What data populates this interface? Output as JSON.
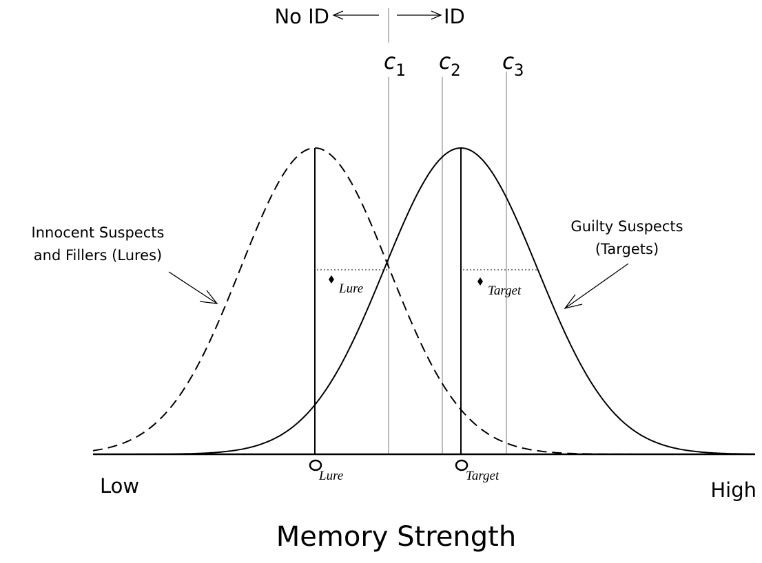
{
  "header": {
    "no_id": "No ID",
    "id": "ID"
  },
  "criteria": [
    {
      "letter": "c",
      "sub": "1"
    },
    {
      "letter": "c",
      "sub": "2"
    },
    {
      "letter": "c",
      "sub": "3"
    }
  ],
  "lure_label": {
    "line1": "Innocent Suspects",
    "line2": "and Fillers (Lures)"
  },
  "target_label": {
    "line1": "Guilty Suspects",
    "line2": "(Targets)"
  },
  "sigma": {
    "lure": "Lure",
    "target": "Target"
  },
  "mu": {
    "lure": "Lure",
    "target": "Target"
  },
  "axis": {
    "low": "Low",
    "high": "High",
    "title": "Memory Strength"
  }
}
